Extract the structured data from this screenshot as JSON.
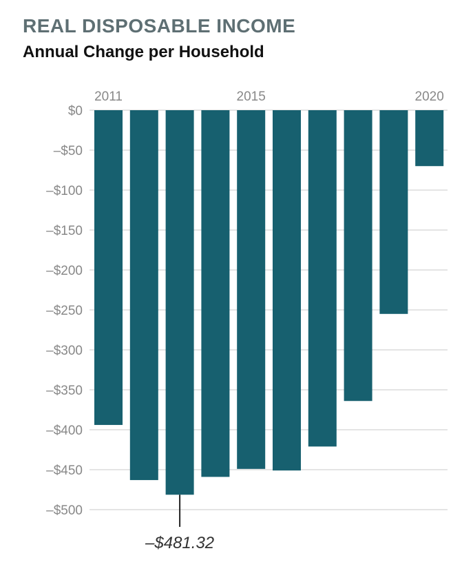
{
  "chart_data": {
    "type": "bar",
    "title": "REAL DISPOSABLE INCOME",
    "subtitle": "Annual Change per Household",
    "categories": [
      "2011",
      "2012",
      "2013",
      "2014",
      "2015",
      "2016",
      "2017",
      "2018",
      "2019",
      "2020"
    ],
    "x_tick_labels": [
      "2011",
      "2015",
      "2020"
    ],
    "values": [
      -394,
      -463,
      -481.32,
      -459,
      -449,
      -451,
      -421,
      -364,
      -255,
      -70
    ],
    "ylim": [
      -500,
      0
    ],
    "y_ticks": [
      0,
      -50,
      -100,
      -150,
      -200,
      -250,
      -300,
      -350,
      -400,
      -450,
      -500
    ],
    "y_tick_labels": [
      "$0",
      "–$50",
      "–$100",
      "–$150",
      "–$200",
      "–$250",
      "–$300",
      "–$350",
      "–$400",
      "–$450",
      "–$500"
    ],
    "xlabel": "",
    "ylabel": "",
    "grid": true,
    "bar_color": "#17606f",
    "annotation": {
      "category": "2013",
      "label": "–$481.32"
    }
  }
}
